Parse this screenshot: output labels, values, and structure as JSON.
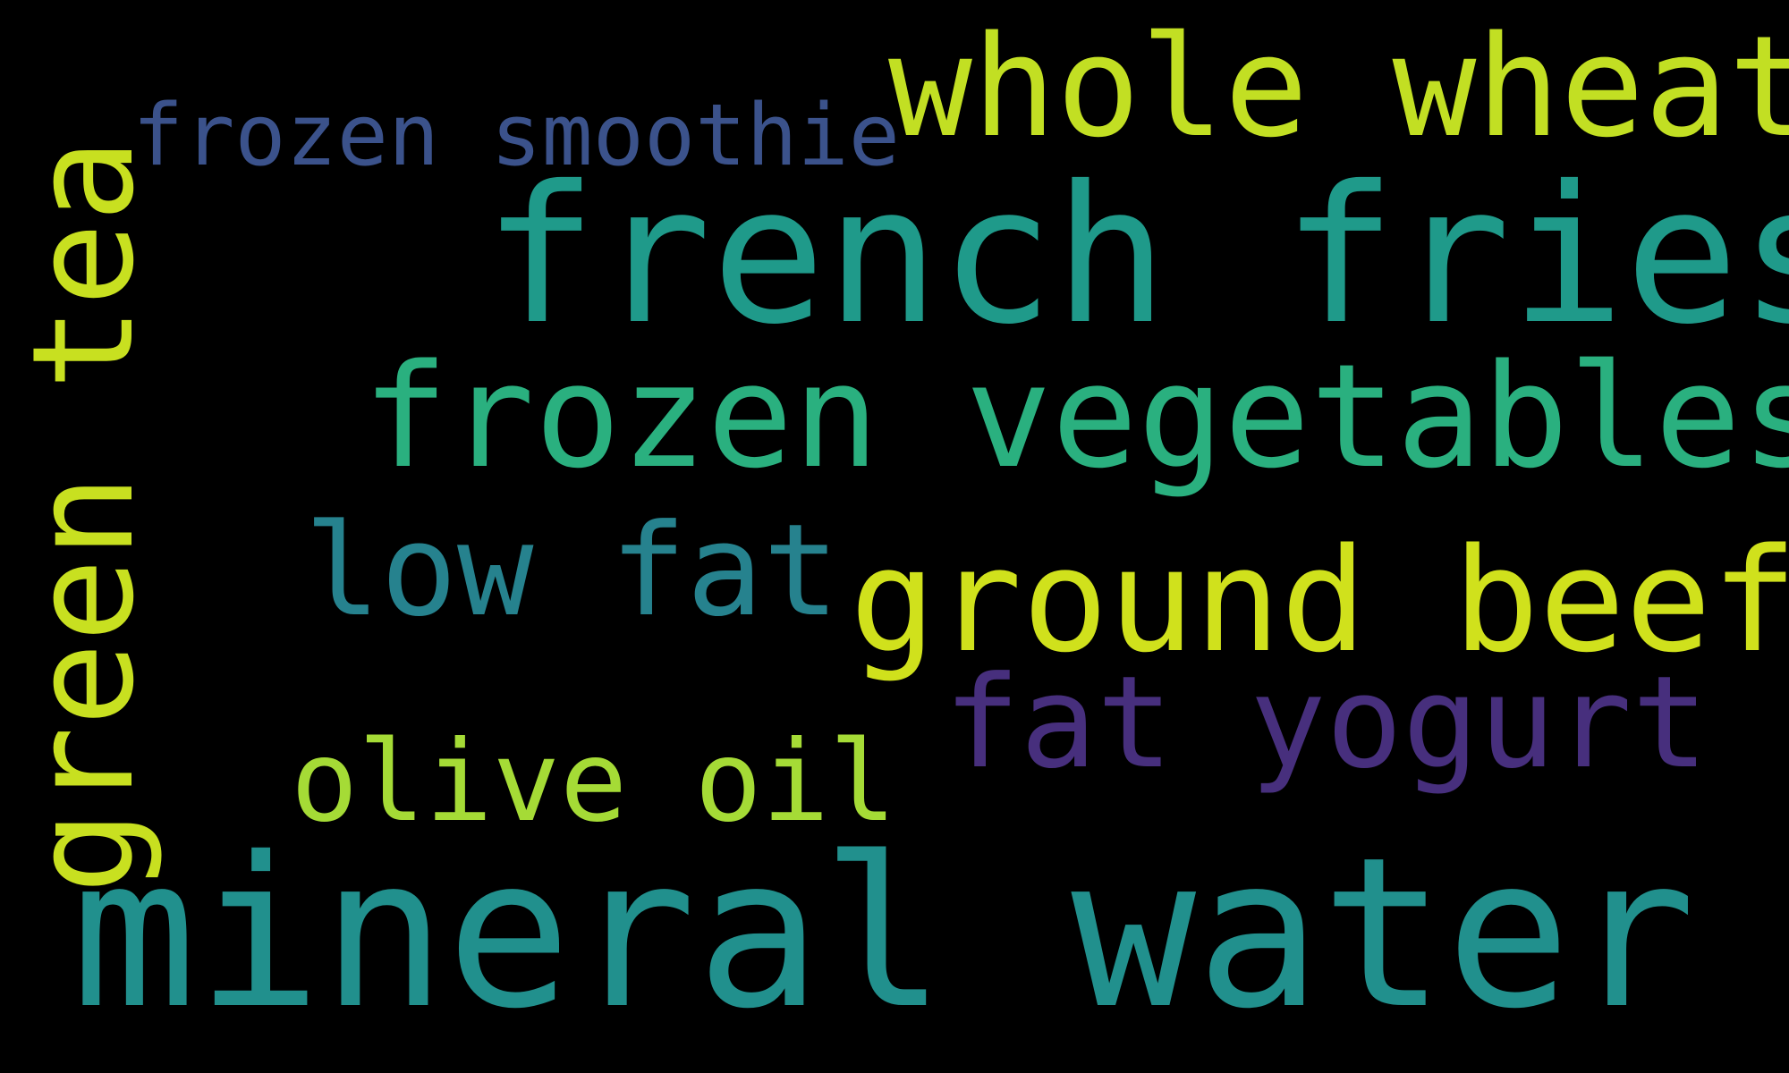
{
  "background_color": "#000000",
  "words": {
    "mineral_water": {
      "text": "mineral water",
      "color": "#21908d"
    },
    "french_fries": {
      "text": "french fries",
      "color": "#1f9a8a"
    },
    "green_tea": {
      "text": "green tea",
      "color": "#c8e020"
    },
    "frozen_vegetables": {
      "text": "frozen vegetables",
      "color": "#2ab07f"
    },
    "whole_wheat": {
      "text": "whole wheat",
      "color": "#c2df23"
    },
    "ground_beef": {
      "text": "ground beef",
      "color": "#d0e11c"
    },
    "low_fat": {
      "text": "low fat",
      "color": "#26828e"
    },
    "fat_yogurt": {
      "text": "fat yogurt",
      "color": "#472f7d"
    },
    "olive_oil": {
      "text": "olive oil",
      "color": "#a5db36"
    },
    "frozen_smoothie": {
      "text": "frozen smoothie",
      "color": "#3b528b"
    }
  }
}
